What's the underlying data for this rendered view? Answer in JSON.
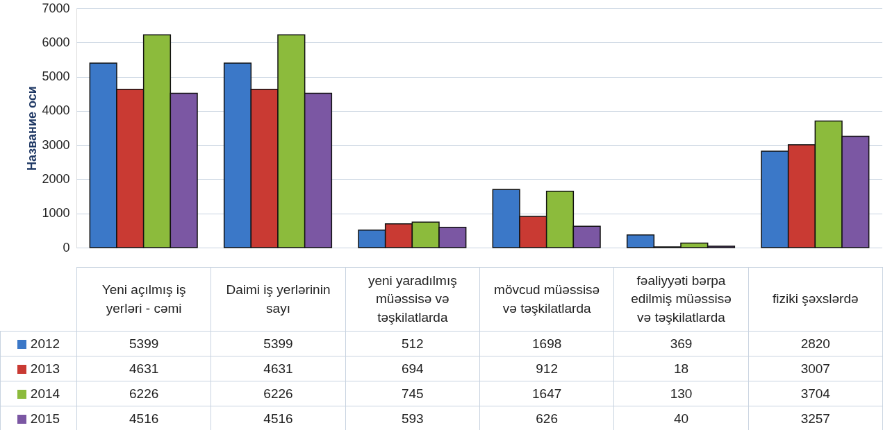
{
  "chart_data": {
    "type": "bar",
    "ylabel": "Название оси",
    "categories": [
      "Yeni açılmış iş yerləri - cəmi",
      "Daimi iş yerlərinin sayı",
      "yeni yaradılmış müəssisə və təşkilatlarda",
      "mövcud müəssisə və təşkilatlarda",
      "fəaliyyəti bərpa edilmiş müəssisə və təşkilatlarda",
      "fiziki şəxslərdə"
    ],
    "series": [
      {
        "name": "2012",
        "color": "#3b78c8",
        "values": [
          5399,
          5399,
          512,
          1698,
          369,
          2820
        ]
      },
      {
        "name": "2013",
        "color": "#c93a33",
        "values": [
          4631,
          4631,
          694,
          912,
          18,
          3007
        ]
      },
      {
        "name": "2014",
        "color": "#8cbb3c",
        "values": [
          6226,
          6226,
          745,
          1647,
          130,
          3704
        ]
      },
      {
        "name": "2015",
        "color": "#7b57a3",
        "values": [
          4516,
          4516,
          593,
          626,
          40,
          3257
        ]
      }
    ],
    "ylim": [
      0,
      7000
    ],
    "yticks": [
      0,
      1000,
      2000,
      3000,
      4000,
      5000,
      6000,
      7000
    ],
    "grid": "y",
    "legend": "bottom",
    "data_labels": true
  }
}
